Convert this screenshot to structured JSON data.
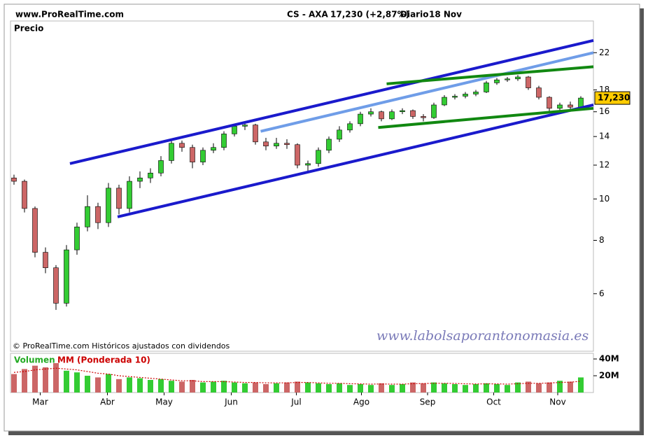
{
  "site": "www.ProRealTime.com",
  "chart_data": {
    "type": "candlestick",
    "title": "CS - AXA",
    "quote": "17,230 (+2,87%)",
    "period": "Diario",
    "date": "18 Nov",
    "y_label": "Precio",
    "note": "© ProRealTime.com Históricos ajustados con dividendos",
    "watermark": "www.labolsaporantonomasia.es",
    "last_label": "17,230",
    "categories": [
      null,
      null,
      null,
      null,
      null,
      null,
      null,
      null,
      null,
      null,
      null,
      null,
      null,
      null,
      null,
      null,
      null,
      null,
      null,
      null,
      null,
      null,
      null,
      null,
      null,
      null,
      null,
      null,
      null,
      null,
      null,
      null,
      null,
      null,
      null,
      null,
      null,
      null,
      null,
      null,
      null,
      null,
      null,
      null,
      null,
      null,
      null,
      null,
      null,
      null,
      null,
      null,
      null,
      null,
      null
    ],
    "xticks": [
      {
        "value": 2.5,
        "label": "Mar"
      },
      {
        "value": 8.9,
        "label": "Abr"
      },
      {
        "value": 14.3,
        "label": "May"
      },
      {
        "value": 20.7,
        "label": "Jun"
      },
      {
        "value": 26.9,
        "label": "Jul"
      },
      {
        "value": 33.1,
        "label": "Ago"
      },
      {
        "value": 39.4,
        "label": "Sep"
      },
      {
        "value": 45.7,
        "label": "Oct"
      },
      {
        "value": 51.8,
        "label": "Nov"
      }
    ],
    "open": [
      11.2,
      11.0,
      9.5,
      7.5,
      6.9,
      5.7,
      7.6,
      8.6,
      9.6,
      8.8,
      10.6,
      9.5,
      11.0,
      11.2,
      11.5,
      12.3,
      13.5,
      13.2,
      12.2,
      13.0,
      13.2,
      14.2,
      14.8,
      14.9,
      13.6,
      13.3,
      13.5,
      13.4,
      12.0,
      12.1,
      13.0,
      13.8,
      14.5,
      15.0,
      15.8,
      16.0,
      15.4,
      16.0,
      16.1,
      15.6,
      15.5,
      16.6,
      17.3,
      17.4,
      17.6,
      17.8,
      18.7,
      19.0,
      19.1,
      19.3,
      18.2,
      17.3,
      16.3,
      16.6,
      16.4
    ],
    "high": [
      11.4,
      11.1,
      9.6,
      7.7,
      7.0,
      7.8,
      8.8,
      10.2,
      9.8,
      10.9,
      10.8,
      11.3,
      11.6,
      11.8,
      12.6,
      13.8,
      13.7,
      13.4,
      13.2,
      13.5,
      14.4,
      15.0,
      15.1,
      15.0,
      13.9,
      13.9,
      13.8,
      13.5,
      12.3,
      13.2,
      14.0,
      14.8,
      15.2,
      16.0,
      16.3,
      16.1,
      16.2,
      16.3,
      16.2,
      15.8,
      16.8,
      17.5,
      17.6,
      17.8,
      18.0,
      18.9,
      19.2,
      19.3,
      19.5,
      19.4,
      18.4,
      17.4,
      16.8,
      16.9,
      17.4
    ],
    "low": [
      10.8,
      9.3,
      7.3,
      6.7,
      5.5,
      5.6,
      7.4,
      8.4,
      8.5,
      8.6,
      9.2,
      9.3,
      10.6,
      10.9,
      11.3,
      12.1,
      12.9,
      11.8,
      12.0,
      12.8,
      13.0,
      14.0,
      14.5,
      13.4,
      13.0,
      13.1,
      13.1,
      11.8,
      11.6,
      11.9,
      12.8,
      13.6,
      14.3,
      14.8,
      15.6,
      15.2,
      15.3,
      15.8,
      15.4,
      15.2,
      15.4,
      16.5,
      17.1,
      17.2,
      17.4,
      17.7,
      18.5,
      18.8,
      18.9,
      18.0,
      17.1,
      16.0,
      16.1,
      16.2,
      16.3
    ],
    "close": [
      11.0,
      9.5,
      7.5,
      6.9,
      5.7,
      7.6,
      8.6,
      9.6,
      8.8,
      10.6,
      9.5,
      11.0,
      11.2,
      11.5,
      12.3,
      13.5,
      13.2,
      12.2,
      13.0,
      13.2,
      14.2,
      14.8,
      14.9,
      13.6,
      13.3,
      13.5,
      13.4,
      12.0,
      12.1,
      13.0,
      13.8,
      14.5,
      15.0,
      15.8,
      16.0,
      15.4,
      16.0,
      16.1,
      15.6,
      15.5,
      16.6,
      17.3,
      17.4,
      17.6,
      17.8,
      18.7,
      19.0,
      19.1,
      19.3,
      18.2,
      17.3,
      16.3,
      16.6,
      16.4,
      17.23
    ],
    "up_color": "#33cc33",
    "down_color": "#cc6666",
    "ylim": [
      4.4,
      26.1
    ],
    "log_scale": true,
    "yticks": [
      6,
      8,
      10,
      12,
      14,
      16,
      18,
      22
    ],
    "trendlines": [
      {
        "color": "#1a1acc",
        "x": [
          5.33,
          55.2
        ],
        "y": [
          12.1,
          23.5
        ]
      },
      {
        "color": "#1a1acc",
        "x": [
          9.87,
          55.2
        ],
        "y": [
          9.08,
          16.6
        ]
      },
      {
        "color": "#6f9de8",
        "x": [
          23.5,
          55.2
        ],
        "y": [
          14.4,
          22.0
        ]
      },
      {
        "color": "#118811",
        "x": [
          35.5,
          55.2
        ],
        "y": [
          18.6,
          20.4
        ]
      },
      {
        "color": "#118811",
        "x": [
          34.7,
          55.2
        ],
        "y": [
          14.7,
          16.3
        ]
      }
    ],
    "volume": {
      "label": "Volumen",
      "ma_label": "MM (Ponderada 10)",
      "ma_color": "#cc0000",
      "values": [
        22,
        28,
        32,
        30,
        35,
        26,
        24,
        20,
        18,
        22,
        16,
        18,
        17,
        15,
        16,
        14,
        13,
        15,
        12,
        13,
        14,
        12,
        11,
        12,
        10,
        11,
        12,
        13,
        12,
        11,
        10,
        11,
        9,
        10,
        9,
        11,
        9,
        10,
        12,
        11,
        12,
        11,
        10,
        9,
        10,
        11,
        10,
        9,
        12,
        13,
        11,
        12,
        14,
        13,
        18
      ],
      "ma": [
        24,
        25,
        27,
        28,
        29,
        28,
        27,
        25,
        23,
        22,
        20,
        19,
        18,
        17,
        16,
        15,
        14,
        14,
        13,
        13,
        13,
        12.5,
        12,
        12,
        11.5,
        11.5,
        11.5,
        12,
        12,
        11.5,
        11,
        11,
        10.5,
        10.3,
        10,
        10.2,
        10,
        10,
        10.5,
        10.7,
        11,
        11,
        10.8,
        10.4,
        10.2,
        10.4,
        10.3,
        10,
        10.5,
        11,
        11,
        11.3,
        12,
        12.3,
        13.5
      ],
      "ylim": [
        0,
        46.7
      ],
      "yticks": [
        {
          "value": 40,
          "label": "40M"
        },
        {
          "value": 20,
          "label": "20M"
        }
      ]
    }
  }
}
